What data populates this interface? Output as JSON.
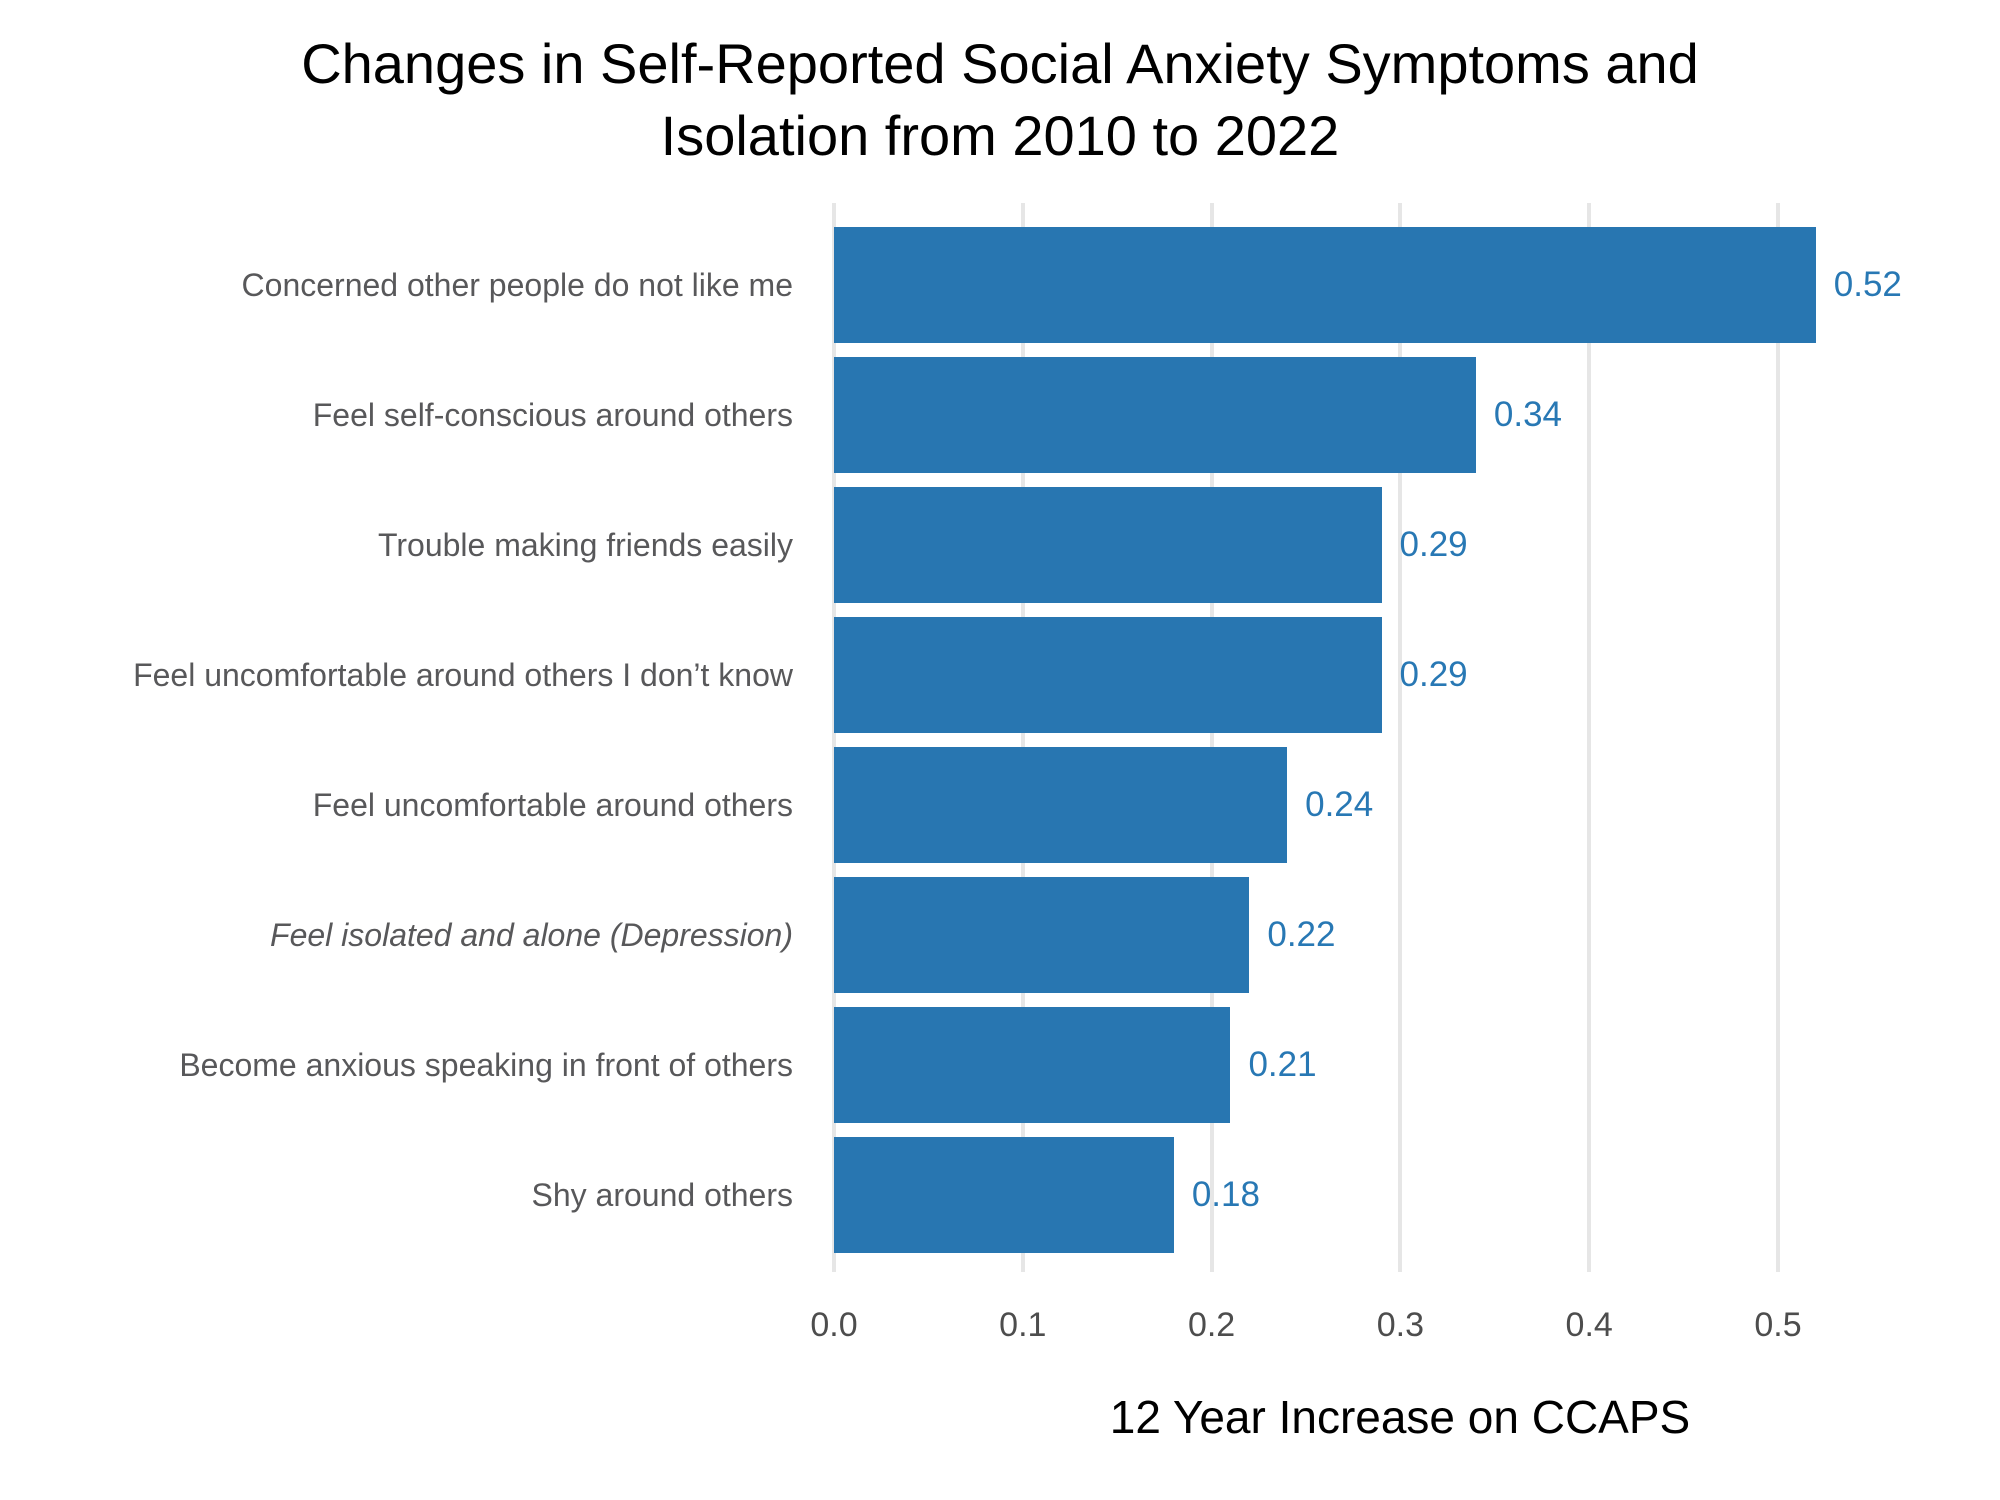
{
  "title": {
    "line1": "Changes in Self-Reported Social Anxiety Symptoms and",
    "line2": "Isolation from 2010 to 2022"
  },
  "chart_data": {
    "type": "bar",
    "orientation": "horizontal",
    "title": "Changes in Self-Reported Social Anxiety Symptoms and Isolation from 2010 to 2022",
    "xlabel": "12 Year Increase on CCAPS",
    "ylabel": "",
    "categories": [
      "Concerned other people do not like me",
      "Feel self-conscious around others",
      "Trouble making friends easily",
      "Feel uncomfortable around others I don’t know",
      "Feel uncomfortable around others",
      "Feel isolated and alone (Depression)",
      "Become anxious speaking in front of others",
      "Shy around others"
    ],
    "values": [
      0.52,
      0.34,
      0.29,
      0.29,
      0.24,
      0.22,
      0.21,
      0.18
    ],
    "value_labels": [
      "0.52",
      "0.34",
      "0.29",
      "0.29",
      "0.24",
      "0.22",
      "0.21",
      "0.18"
    ],
    "italic_flags": [
      false,
      false,
      false,
      false,
      false,
      true,
      false,
      false
    ],
    "xlim": [
      0,
      0.56
    ],
    "xticks": [
      0.0,
      0.1,
      0.2,
      0.3,
      0.4,
      0.5
    ],
    "xtick_labels": [
      "0.0",
      "0.1",
      "0.2",
      "0.3",
      "0.4",
      "0.5"
    ],
    "grid": "vertical-major-only",
    "legend": "none",
    "colors": {
      "bar": "#2876b1",
      "value_label": "#2878b4",
      "category_label": "#58585a",
      "tick_label": "#4d4d4d",
      "gridline": "#e6e6e6",
      "title": "#000000",
      "axis_title": "#000000",
      "background": "#ffffff"
    }
  }
}
